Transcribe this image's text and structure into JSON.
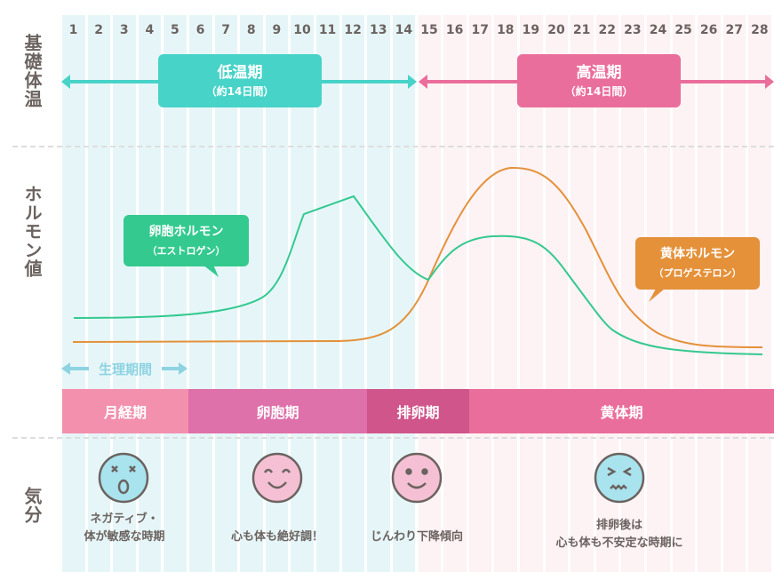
{
  "days": [
    "1",
    "2",
    "3",
    "4",
    "5",
    "6",
    "7",
    "8",
    "9",
    "10",
    "11",
    "12",
    "13",
    "14",
    "15",
    "16",
    "17",
    "18",
    "19",
    "20",
    "21",
    "22",
    "23",
    "24",
    "25",
    "26",
    "27",
    "28"
  ],
  "row_labels": {
    "temperature": "基礎体温",
    "hormone": "ホルモン値",
    "mood": "気分"
  },
  "low_temp": {
    "title": "低温期",
    "sub": "（約14日間）",
    "color": "#48d3c8"
  },
  "high_temp": {
    "title": "高温期",
    "sub": "（約14日間）",
    "color": "#ea6e9b"
  },
  "estrogen": {
    "title": "卵胞ホルモン",
    "sub": "（エストロゲン）",
    "color": "#34c98f"
  },
  "progesterone": {
    "title": "黄体ホルモン",
    "sub": "（プロゲステロン）",
    "color": "#e4913a"
  },
  "menstruation_label": "生理期間",
  "phases": [
    {
      "label": "月経期",
      "color": "#f290ad"
    },
    {
      "label": "卵胞期",
      "color": "#de70aa"
    },
    {
      "label": "排卵期",
      "color": "#d0558a"
    },
    {
      "label": "黄体期",
      "color": "#ea6e9b"
    }
  ],
  "moods": [
    {
      "line1": "ネガティブ・",
      "line2": "体が敏感な時期",
      "face": "dizzy-face-icon"
    },
    {
      "line1": "心も体も絶好調！",
      "line2": "",
      "face": "happy-face-icon"
    },
    {
      "line1": "じんわり下降傾向",
      "line2": "",
      "face": "smile-face-icon"
    },
    {
      "line1": "排卵後は",
      "line2": "心も体も不安定な時期に",
      "face": "distressed-face-icon"
    }
  ]
}
